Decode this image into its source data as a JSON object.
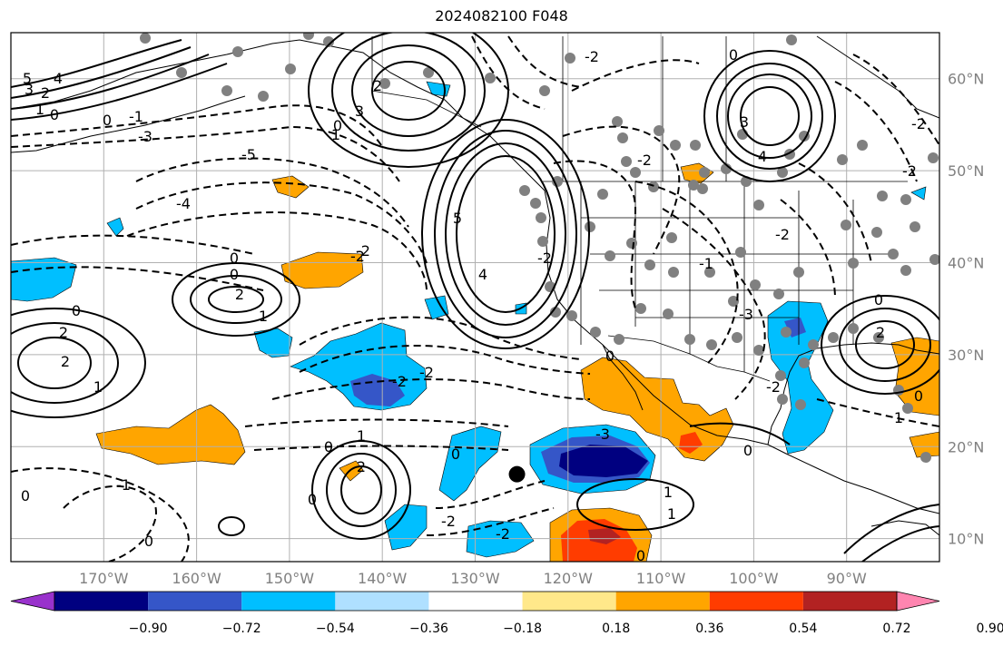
{
  "title": "2024082100 F048",
  "map": {
    "projection": "PlateCarree",
    "lon_range": [
      -180,
      -80
    ],
    "lat_range": [
      7.5,
      65
    ],
    "lon_ticks": [
      {
        "lon": -170,
        "label": "170°W"
      },
      {
        "lon": -160,
        "label": "160°W"
      },
      {
        "lon": -150,
        "label": "150°W"
      },
      {
        "lon": -140,
        "label": "140°W"
      },
      {
        "lon": -130,
        "label": "130°W"
      },
      {
        "lon": -120,
        "label": "120°W"
      },
      {
        "lon": -110,
        "label": "110°W"
      },
      {
        "lon": -100,
        "label": "100°W"
      },
      {
        "lon": -90,
        "label": "90°W"
      }
    ],
    "lat_ticks": [
      {
        "lat": 60,
        "label": "60°N"
      },
      {
        "lat": 50,
        "label": "50°N"
      },
      {
        "lat": 40,
        "label": "40°N"
      },
      {
        "lat": 30,
        "label": "30°N"
      },
      {
        "lat": 20,
        "label": "20°N"
      },
      {
        "lat": 10,
        "label": "10°N"
      }
    ],
    "storm_marker": {
      "lon": -125.5,
      "lat": 17
    },
    "contour_labels": [
      "5",
      "4",
      "3",
      "2",
      "1",
      "0",
      "-1",
      "-2",
      "-3",
      "-4",
      "-5"
    ]
  },
  "colorbar": {
    "ticks": [
      "−0.90",
      "−0.72",
      "−0.54",
      "−0.36",
      "−0.18",
      "0.18",
      "0.36",
      "0.54",
      "0.72",
      "0.90"
    ],
    "colors": {
      "under": "#9932cc",
      "bins": [
        "#000080",
        "#3556c8",
        "#00bfff",
        "#afe0ff",
        "#ffffff",
        "#ffe88a",
        "#ffa500",
        "#ff3c00",
        "#b22222"
      ],
      "over": "#ff85b0"
    }
  }
}
